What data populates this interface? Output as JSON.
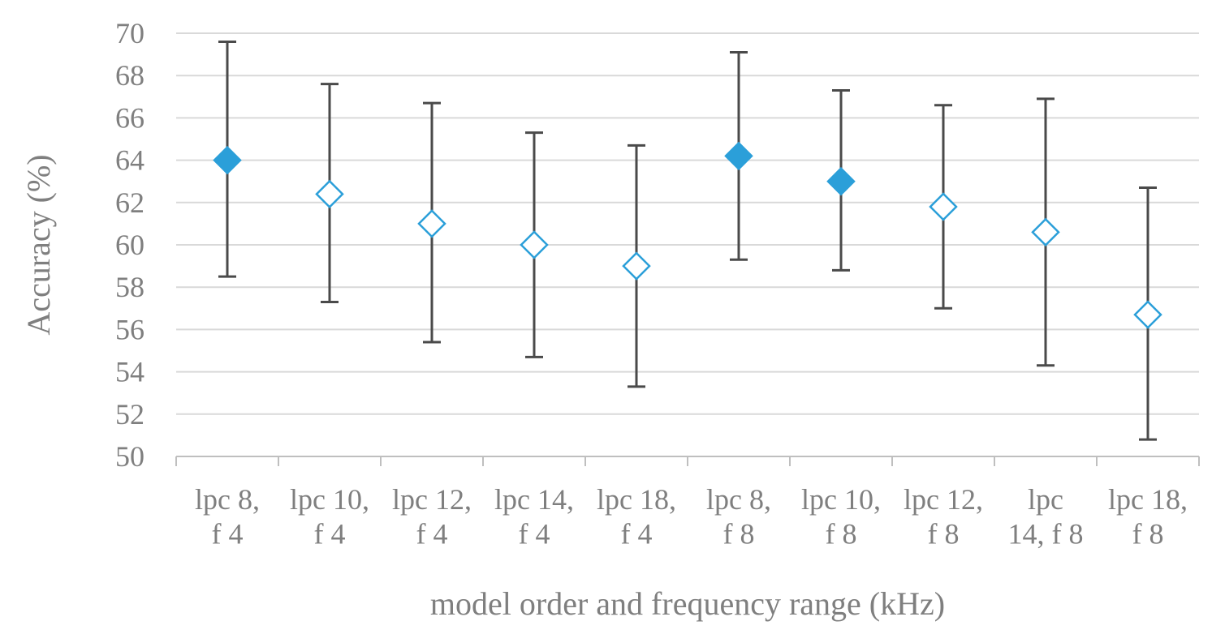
{
  "chart_data": {
    "type": "scatter",
    "title": "",
    "xlabel": "model order and frequency range (kHz)",
    "ylabel": "Accuracy (%)",
    "ylim": [
      50,
      70
    ],
    "yticks": [
      50,
      52,
      54,
      56,
      58,
      60,
      62,
      64,
      66,
      68,
      70
    ],
    "grid": true,
    "legend": "none",
    "marker": "diamond",
    "color": "#2b9fd9",
    "categories": [
      [
        "lpc 8,",
        "f 4"
      ],
      [
        "lpc 10,",
        "f 4"
      ],
      [
        "lpc 12,",
        "f 4"
      ],
      [
        "lpc 14,",
        "f 4"
      ],
      [
        "lpc 18,",
        "f 4"
      ],
      [
        "lpc 8,",
        "f 8"
      ],
      [
        "lpc 10,",
        "f 8"
      ],
      [
        "lpc 12,",
        "f 8"
      ],
      [
        "lpc",
        "14, f 8"
      ],
      [
        "lpc 18,",
        "f 8"
      ]
    ],
    "values": [
      64.0,
      62.4,
      61.0,
      60.0,
      59.0,
      64.2,
      63.0,
      61.8,
      60.6,
      56.7
    ],
    "error_upper": [
      69.6,
      67.6,
      66.7,
      65.3,
      64.7,
      69.1,
      67.3,
      66.6,
      66.9,
      62.7
    ],
    "error_lower": [
      58.5,
      57.3,
      55.4,
      54.7,
      53.3,
      59.3,
      58.8,
      57.0,
      54.3,
      50.8
    ],
    "filled": [
      true,
      false,
      false,
      false,
      false,
      true,
      true,
      false,
      false,
      false
    ]
  }
}
